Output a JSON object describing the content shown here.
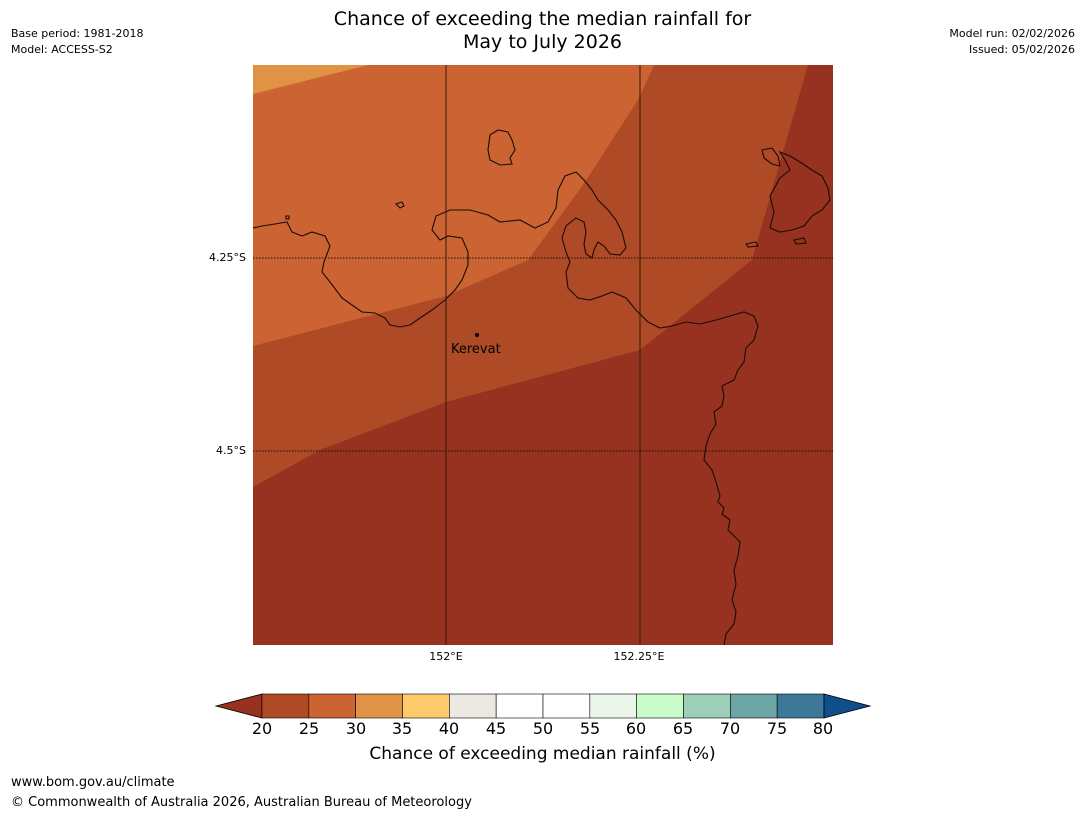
{
  "title": {
    "line1": "Chance of exceeding the median rainfall for",
    "line2": "May to July 2026"
  },
  "meta_left": {
    "base_period": "Base period: 1981-2018",
    "model": "Model: ACCESS-S2"
  },
  "meta_right": {
    "model_run": "Model run: 02/02/2026",
    "issued": "Issued: 05/02/2026"
  },
  "map": {
    "latitude_labels": [
      "4.25°S",
      "4.5°S"
    ],
    "longitude_labels": [
      "152°E",
      "152.25°E"
    ],
    "place_label": "Kerevat",
    "place_marker_icon": "location-dot-icon"
  },
  "colorbar": {
    "title": "Chance of exceeding median rainfall (%)",
    "ticks": [
      "20",
      "25",
      "30",
      "35",
      "40",
      "45",
      "50",
      "55",
      "60",
      "65",
      "70",
      "75",
      "80"
    ],
    "below_color": "#96321f",
    "above_color": "#0f4f8c",
    "colors": [
      "#ae4a26",
      "#cb6432",
      "#e19345",
      "#fecb6a",
      "#ece8e2",
      "#ffffff",
      "#ffffff",
      "#ebf6ea",
      "#c8fdca",
      "#9dcfb8",
      "#6ea5a5",
      "#3d7899"
    ]
  },
  "region_colors": {
    "band_20_25": "#96321f",
    "band_25_30": "#ae4a26",
    "band_30_35": "#cb6432",
    "band_35_40": "#e19345"
  },
  "footer": {
    "url": "www.bom.gov.au/climate",
    "copyright": "© Commonwealth of Australia 2026, Australian Bureau of Meteorology"
  }
}
